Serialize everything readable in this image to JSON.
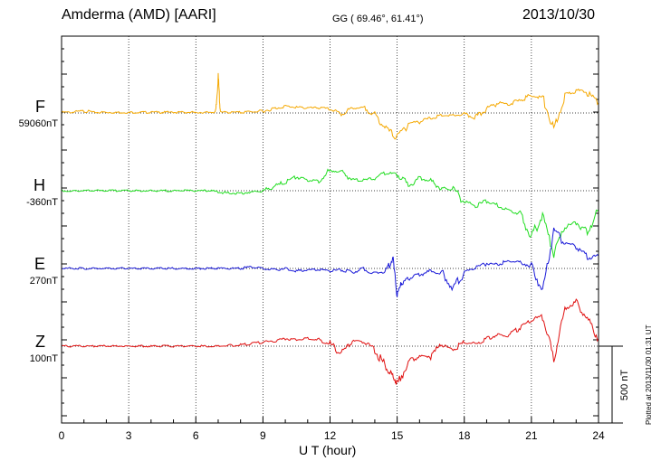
{
  "header": {
    "station": "Amderma (AMD)  [AARI]",
    "coords": "GG ( 69.46°,  61.41°)",
    "date": "2013/10/30"
  },
  "footer": {
    "plotted": "Plotted at 2013/11/30 01:31 UT"
  },
  "chart_data": {
    "type": "line",
    "title": "Amderma (AMD)  [AARI]",
    "xlabel": "U T (hour)",
    "xlim": [
      0,
      24
    ],
    "xticks": [
      0,
      3,
      6,
      9,
      12,
      15,
      18,
      21,
      24
    ],
    "grid": true,
    "scale_bar": {
      "label": "500 nT",
      "value_nT": 500
    },
    "series": [
      {
        "name": "F",
        "baseline_label": "59060nT",
        "color": "#f5a800",
        "x": [
          0,
          0.5,
          1,
          1.5,
          2,
          2.5,
          3,
          3.5,
          4,
          4.5,
          5,
          5.5,
          6,
          6.5,
          6.9,
          7,
          7.1,
          7.5,
          8,
          8.5,
          9,
          9.5,
          10,
          10.5,
          11,
          11.5,
          12,
          12.5,
          13,
          13.5,
          14,
          14.5,
          15,
          15.5,
          16,
          16.5,
          17,
          17.5,
          18,
          18.5,
          19,
          19.5,
          20,
          20.5,
          21,
          21.5,
          22,
          22.5,
          23,
          23.5,
          24
        ],
        "y": [
          5,
          5,
          15,
          5,
          5,
          5,
          5,
          5,
          5,
          5,
          5,
          5,
          5,
          5,
          10,
          290,
          5,
          5,
          5,
          10,
          15,
          35,
          55,
          45,
          40,
          40,
          30,
          -10,
          40,
          40,
          -10,
          -120,
          -200,
          -80,
          -70,
          -40,
          -20,
          -20,
          -10,
          -40,
          30,
          80,
          70,
          100,
          140,
          120,
          -130,
          140,
          180,
          160,
          80
        ]
      },
      {
        "name": "H",
        "baseline_label": "-360nT",
        "color": "#22dd22",
        "x": [
          0,
          0.5,
          1,
          1.5,
          2,
          2.5,
          3,
          3.5,
          4,
          4.5,
          5,
          5.5,
          6,
          6.5,
          7,
          7.5,
          8,
          8.5,
          9,
          9.5,
          10,
          10.5,
          11,
          11.5,
          12,
          12.5,
          13,
          13.5,
          14,
          14.5,
          15,
          15.5,
          16,
          16.5,
          17,
          17.5,
          18,
          18.5,
          19,
          19.5,
          20,
          20.5,
          21,
          21.5,
          22,
          22.5,
          23,
          23.5,
          24
        ],
        "y": [
          0,
          0,
          0,
          0,
          0,
          0,
          0,
          0,
          0,
          0,
          0,
          0,
          0,
          0,
          -10,
          -20,
          -20,
          -10,
          0,
          30,
          70,
          110,
          80,
          80,
          160,
          150,
          90,
          80,
          100,
          140,
          130,
          40,
          100,
          80,
          20,
          10,
          -90,
          -120,
          -80,
          -120,
          -150,
          -180,
          -360,
          -200,
          -500,
          -290,
          -250,
          -330,
          -150
        ]
      },
      {
        "name": "E",
        "baseline_label": "270nT",
        "color": "#1a1ad8",
        "x": [
          0,
          0.5,
          1,
          1.5,
          2,
          2.5,
          3,
          3.5,
          4,
          4.5,
          5,
          5.5,
          6,
          6.5,
          7,
          7.5,
          8,
          8.5,
          9,
          9.5,
          10,
          10.5,
          11,
          11.5,
          12,
          12.5,
          13,
          13.5,
          14,
          14.5,
          14.8,
          15,
          15.2,
          15.5,
          16,
          16.5,
          17,
          17.5,
          18,
          18.5,
          19,
          19.5,
          20,
          20.5,
          21,
          21.5,
          22,
          22.5,
          23,
          23.5,
          24
        ],
        "y": [
          0,
          0,
          0,
          0,
          0,
          0,
          0,
          0,
          0,
          0,
          0,
          0,
          0,
          0,
          0,
          0,
          0,
          10,
          0,
          -10,
          0,
          -20,
          -10,
          -10,
          -20,
          -10,
          -30,
          0,
          -40,
          -20,
          80,
          -200,
          -120,
          -80,
          -50,
          -20,
          -40,
          -150,
          -30,
          0,
          40,
          30,
          60,
          50,
          20,
          -180,
          300,
          200,
          180,
          80,
          100
        ]
      },
      {
        "name": "Z",
        "baseline_label": "100nT",
        "color": "#e01010",
        "x": [
          0,
          0.5,
          1,
          1.5,
          2,
          2.5,
          3,
          3.5,
          4,
          4.5,
          5,
          5.5,
          6,
          6.5,
          7,
          7.5,
          8,
          8.5,
          9,
          9.5,
          10,
          10.5,
          11,
          11.5,
          12,
          12.5,
          13,
          13.5,
          14,
          14.5,
          14.8,
          15,
          15.5,
          16,
          16.5,
          17,
          17.5,
          18,
          18.5,
          19,
          19.5,
          20,
          20.5,
          21,
          21.5,
          22,
          22.5,
          23,
          23.5,
          24
        ],
        "y": [
          0,
          0,
          0,
          0,
          0,
          0,
          0,
          0,
          0,
          0,
          0,
          0,
          0,
          0,
          0,
          5,
          10,
          20,
          30,
          40,
          60,
          50,
          60,
          50,
          20,
          -60,
          40,
          30,
          -20,
          -170,
          -230,
          -300,
          -120,
          -80,
          -80,
          10,
          -30,
          30,
          20,
          60,
          90,
          80,
          150,
          200,
          240,
          -100,
          300,
          350,
          220,
          60
        ]
      }
    ]
  }
}
